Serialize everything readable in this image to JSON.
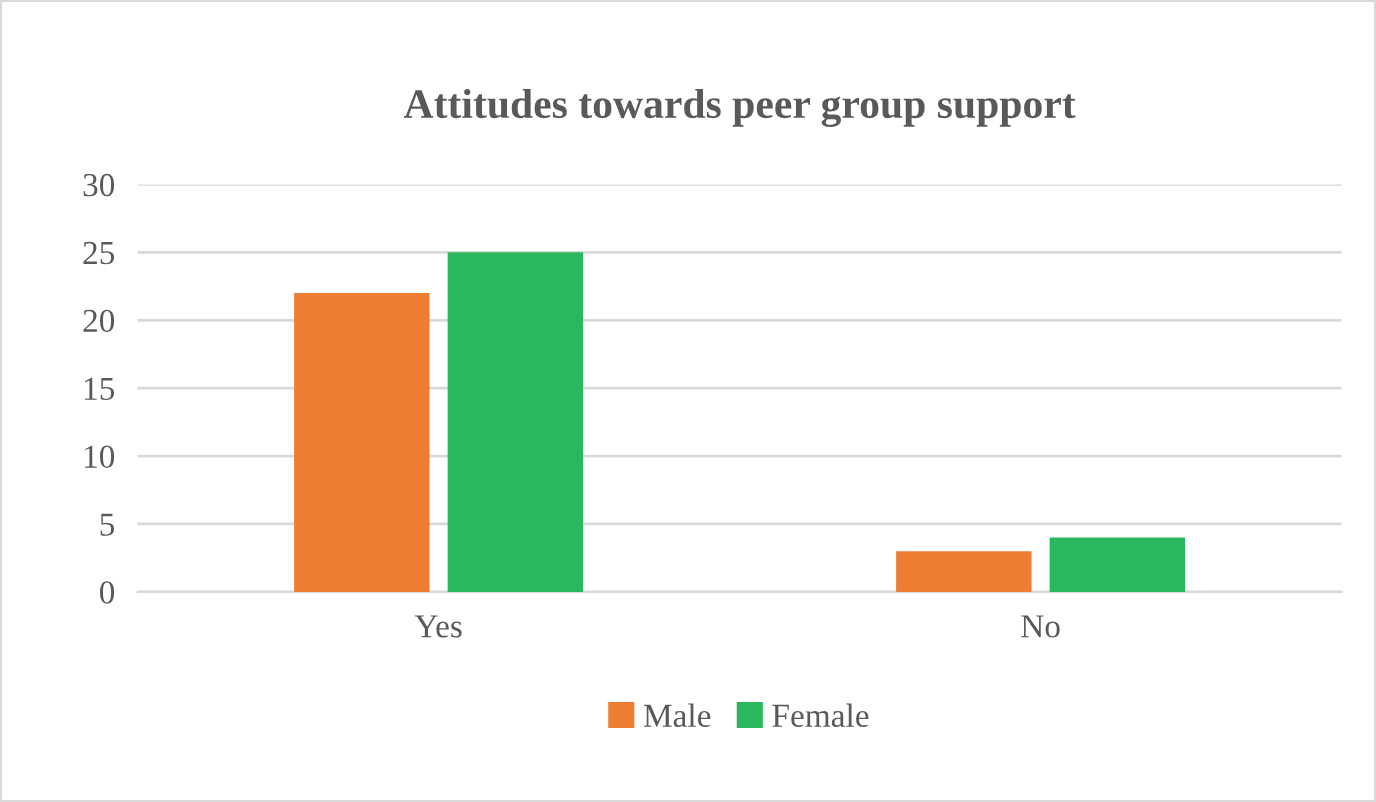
{
  "chart_data": {
    "type": "bar",
    "title": "Attitudes towards peer group support",
    "categories": [
      "Yes",
      "No"
    ],
    "series": [
      {
        "name": "Male",
        "color": "#ed7d31",
        "values": [
          22,
          3
        ]
      },
      {
        "name": "Female",
        "color": "#2bb85c",
        "values": [
          25,
          4
        ]
      }
    ],
    "ylim": [
      0,
      30
    ],
    "yticks": [
      0,
      5,
      10,
      15,
      20,
      25,
      30
    ],
    "grid": "y",
    "legend": "bottom"
  }
}
